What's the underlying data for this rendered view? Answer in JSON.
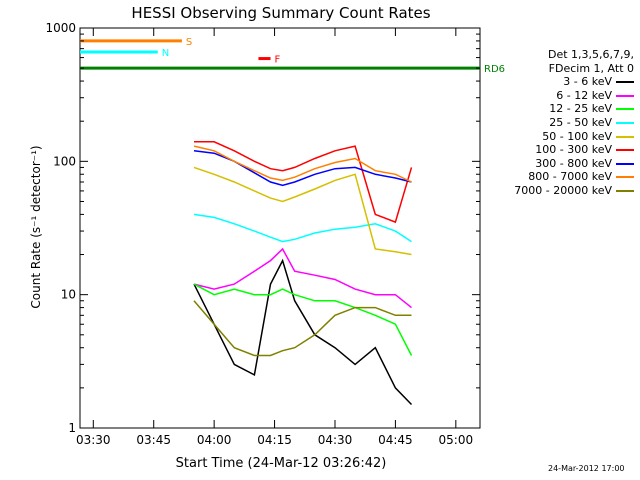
{
  "chart_data": {
    "type": "line",
    "title": "HESSI Observing Summary Count Rates",
    "xlabel": "Start Time (24-Mar-12 03:26:42)",
    "ylabel": "Count Rate (s⁻¹ detector⁻¹)",
    "yscale": "log",
    "ylim": [
      1,
      1000
    ],
    "xlim": [
      "03:26:42",
      "05:06:00"
    ],
    "x_ticks": [
      "03:30",
      "03:45",
      "04:00",
      "04:15",
      "04:30",
      "04:45",
      "05:00"
    ],
    "y_ticks": [
      "1",
      "10",
      "100",
      "1000"
    ],
    "grid": false,
    "legend_placement": "right",
    "legend_header": [
      "Det 1,3,5,6,7,9,",
      "FDecim 1, Att 0"
    ],
    "flags": [
      {
        "label": "S",
        "color": "#ff8000",
        "value": 800,
        "start": "03:26:42",
        "end": "03:52:00"
      },
      {
        "label": "N",
        "color": "#00ffff",
        "value": 660,
        "start": "03:26:42",
        "end": "03:46:00"
      },
      {
        "label": "RD6",
        "color": "#008000",
        "value": 500,
        "start": "03:26:42",
        "end": "05:06:00"
      },
      {
        "label": "F",
        "color": "#ff0000",
        "value": 590,
        "start": "04:11:00",
        "end": "04:14:00"
      }
    ],
    "series": [
      {
        "name": "3 - 6 keV",
        "color": "#000000",
        "x": [
          "03:55",
          "04:00",
          "04:05",
          "04:10",
          "04:14",
          "04:17",
          "04:20",
          "04:25",
          "04:30",
          "04:35",
          "04:40",
          "04:45",
          "04:49"
        ],
        "values": [
          12,
          6,
          3,
          2.5,
          12,
          18,
          9,
          5,
          4,
          3,
          4,
          2,
          1.5
        ]
      },
      {
        "name": "6 - 12 keV",
        "color": "#ff00ff",
        "x": [
          "03:55",
          "04:00",
          "04:05",
          "04:10",
          "04:14",
          "04:17",
          "04:20",
          "04:25",
          "04:30",
          "04:35",
          "04:40",
          "04:45",
          "04:49"
        ],
        "values": [
          12,
          11,
          12,
          15,
          18,
          22,
          15,
          14,
          13,
          11,
          10,
          10,
          8
        ]
      },
      {
        "name": "12 - 25 keV",
        "color": "#00ff00",
        "x": [
          "03:55",
          "04:00",
          "04:05",
          "04:10",
          "04:14",
          "04:17",
          "04:20",
          "04:25",
          "04:30",
          "04:35",
          "04:40",
          "04:45",
          "04:49"
        ],
        "values": [
          12,
          10,
          11,
          10,
          10,
          11,
          10,
          9,
          9,
          8,
          7,
          6,
          3.5
        ]
      },
      {
        "name": "25 - 50 keV",
        "color": "#00ffff",
        "x": [
          "03:55",
          "04:00",
          "04:05",
          "04:10",
          "04:14",
          "04:17",
          "04:20",
          "04:25",
          "04:30",
          "04:35",
          "04:40",
          "04:45",
          "04:49"
        ],
        "values": [
          40,
          38,
          34,
          30,
          27,
          25,
          26,
          29,
          31,
          32,
          34,
          30,
          25
        ]
      },
      {
        "name": "50 - 100 keV",
        "color": "#d4c000",
        "x": [
          "03:55",
          "04:00",
          "04:05",
          "04:10",
          "04:14",
          "04:17",
          "04:20",
          "04:25",
          "04:30",
          "04:35",
          "04:40",
          "04:45",
          "04:49"
        ],
        "values": [
          90,
          80,
          70,
          60,
          53,
          50,
          54,
          62,
          72,
          80,
          22,
          21,
          20
        ]
      },
      {
        "name": "100 - 300 keV",
        "color": "#ff0000",
        "x": [
          "03:55",
          "04:00",
          "04:05",
          "04:10",
          "04:14",
          "04:17",
          "04:20",
          "04:25",
          "04:30",
          "04:35",
          "04:40",
          "04:45",
          "04:49"
        ],
        "values": [
          140,
          140,
          120,
          100,
          88,
          85,
          90,
          105,
          120,
          130,
          40,
          35,
          90
        ]
      },
      {
        "name": "300 - 800 keV",
        "color": "#0000ff",
        "x": [
          "03:55",
          "04:00",
          "04:05",
          "04:10",
          "04:14",
          "04:17",
          "04:20",
          "04:25",
          "04:30",
          "04:35",
          "04:40",
          "04:45",
          "04:49"
        ],
        "values": [
          120,
          115,
          100,
          82,
          70,
          66,
          70,
          80,
          88,
          90,
          80,
          75,
          70
        ]
      },
      {
        "name": "800 - 7000 keV",
        "color": "#ff8000",
        "x": [
          "03:55",
          "04:00",
          "04:05",
          "04:10",
          "04:14",
          "04:17",
          "04:20",
          "04:25",
          "04:30",
          "04:35",
          "04:40",
          "04:45",
          "04:49"
        ],
        "values": [
          130,
          120,
          100,
          85,
          75,
          72,
          76,
          88,
          98,
          105,
          85,
          80,
          70
        ]
      },
      {
        "name": "7000 - 20000 keV",
        "color": "#808000",
        "x": [
          "03:55",
          "04:00",
          "04:05",
          "04:10",
          "04:14",
          "04:17",
          "04:20",
          "04:25",
          "04:30",
          "04:35",
          "04:40",
          "04:45",
          "04:49"
        ],
        "values": [
          9,
          6,
          4,
          3.5,
          3.5,
          3.8,
          4,
          5,
          7,
          8,
          8,
          7,
          7
        ]
      }
    ],
    "footer_date": "24-Mar-2012 17:00"
  }
}
